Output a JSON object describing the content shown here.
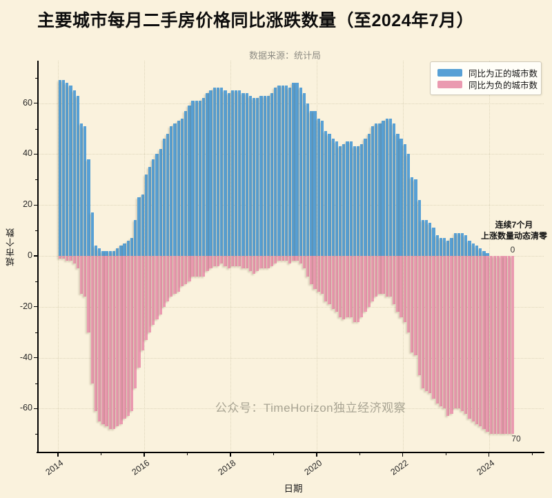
{
  "title": "主要城市每月二手房价格同比涨跌数量（至2024年7月）",
  "subtitle": "数据来源：统计局",
  "watermark": "公众号：TimeHorizon独立经济观察",
  "annotation": {
    "line1": "连续7个月",
    "line2": "上涨数量动态清零",
    "zero_label": "0",
    "end_label": "70"
  },
  "legend": {
    "items": [
      {
        "label": "同比为正的城市数",
        "color": "#57a0d5"
      },
      {
        "label": "同比为负的城市数",
        "color": "#ea9ab0"
      }
    ]
  },
  "axes": {
    "ylabel": "城市个数",
    "xlabel": "日期",
    "yticks": [
      60,
      40,
      20,
      0,
      -20,
      -40,
      -60
    ],
    "xticks": [
      "2014",
      "2016",
      "2018",
      "2020",
      "2022",
      "2024"
    ]
  },
  "colors": {
    "background": "#faf2dd",
    "positive_bar": "#57a0d5",
    "negative_bar": "#ea9ab0",
    "grid": "#ddd5ba",
    "spine": "#000000"
  },
  "chart_data": {
    "type": "bar",
    "title": "主要城市每月二手房价格同比涨跌数量（至2024年7月）",
    "xlabel": "日期",
    "ylabel": "城市个数",
    "x_start": "2014-01",
    "x_end": "2024-07",
    "x_frequency": "monthly",
    "ylim": [
      -77,
      77
    ],
    "grid": true,
    "legend_position": "upper right",
    "xtick_years": [
      2014,
      2016,
      2018,
      2020,
      2022,
      2024
    ],
    "series": [
      {
        "name": "同比为正的城市数",
        "color": "#57a0d5",
        "values": [
          69,
          69,
          68,
          67,
          65,
          63,
          52,
          51,
          38,
          17,
          4,
          3,
          2,
          2,
          2,
          2,
          3,
          4,
          5,
          6,
          7,
          14,
          23,
          24,
          32,
          35,
          38,
          40,
          42,
          46,
          48,
          51,
          52,
          53,
          54,
          57,
          59,
          61,
          61,
          61,
          62,
          64,
          65,
          66,
          66,
          66,
          65,
          64,
          65,
          65,
          65,
          64,
          64,
          63,
          62,
          62,
          63,
          63,
          63,
          64,
          66,
          67,
          67,
          67,
          66,
          68,
          68,
          66,
          64,
          60,
          57,
          57,
          54,
          53,
          49,
          48,
          46,
          45,
          43,
          44,
          45,
          45,
          43,
          43,
          44,
          46,
          48,
          51,
          52,
          52,
          53,
          54,
          54,
          52,
          48,
          46,
          44,
          40,
          31,
          30,
          22,
          14,
          14,
          13,
          11,
          8,
          7,
          7,
          6,
          7,
          9,
          9,
          9,
          8,
          6,
          5,
          4,
          3,
          2,
          1,
          0,
          0,
          0,
          0,
          0,
          0,
          0
        ]
      },
      {
        "name": "同比为负的城市数",
        "color": "#ea9ab0",
        "values": [
          -1,
          -1,
          -2,
          -2,
          -3,
          -5,
          -15,
          -16,
          -30,
          -50,
          -61,
          -65,
          -66,
          -67,
          -68,
          -68,
          -67,
          -66,
          -64,
          -63,
          -61,
          -52,
          -44,
          -37,
          -33,
          -30,
          -27,
          -25,
          -23,
          -20,
          -18,
          -16,
          -15,
          -14,
          -12,
          -11,
          -10,
          -8,
          -8,
          -8,
          -8,
          -6,
          -5,
          -4,
          -4,
          -3,
          -4,
          -5,
          -4,
          -4,
          -4,
          -5,
          -5,
          -6,
          -7,
          -6,
          -5,
          -5,
          -5,
          -4,
          -3,
          -2,
          -2,
          -2,
          -3,
          -2,
          -2,
          -3,
          -5,
          -8,
          -11,
          -13,
          -14,
          -15,
          -18,
          -19,
          -21,
          -22,
          -24,
          -25,
          -24,
          -24,
          -26,
          -26,
          -24,
          -22,
          -20,
          -18,
          -16,
          -15,
          -15,
          -16,
          -16,
          -19,
          -22,
          -24,
          -26,
          -30,
          -38,
          -39,
          -47,
          -52,
          -53,
          -54,
          -56,
          -58,
          -59,
          -60,
          -63,
          -62,
          -60,
          -60,
          -61,
          -62,
          -64,
          -65,
          -66,
          -67,
          -68,
          -69,
          -70,
          -70,
          -70,
          -70,
          -70,
          -70,
          -70
        ]
      }
    ]
  }
}
